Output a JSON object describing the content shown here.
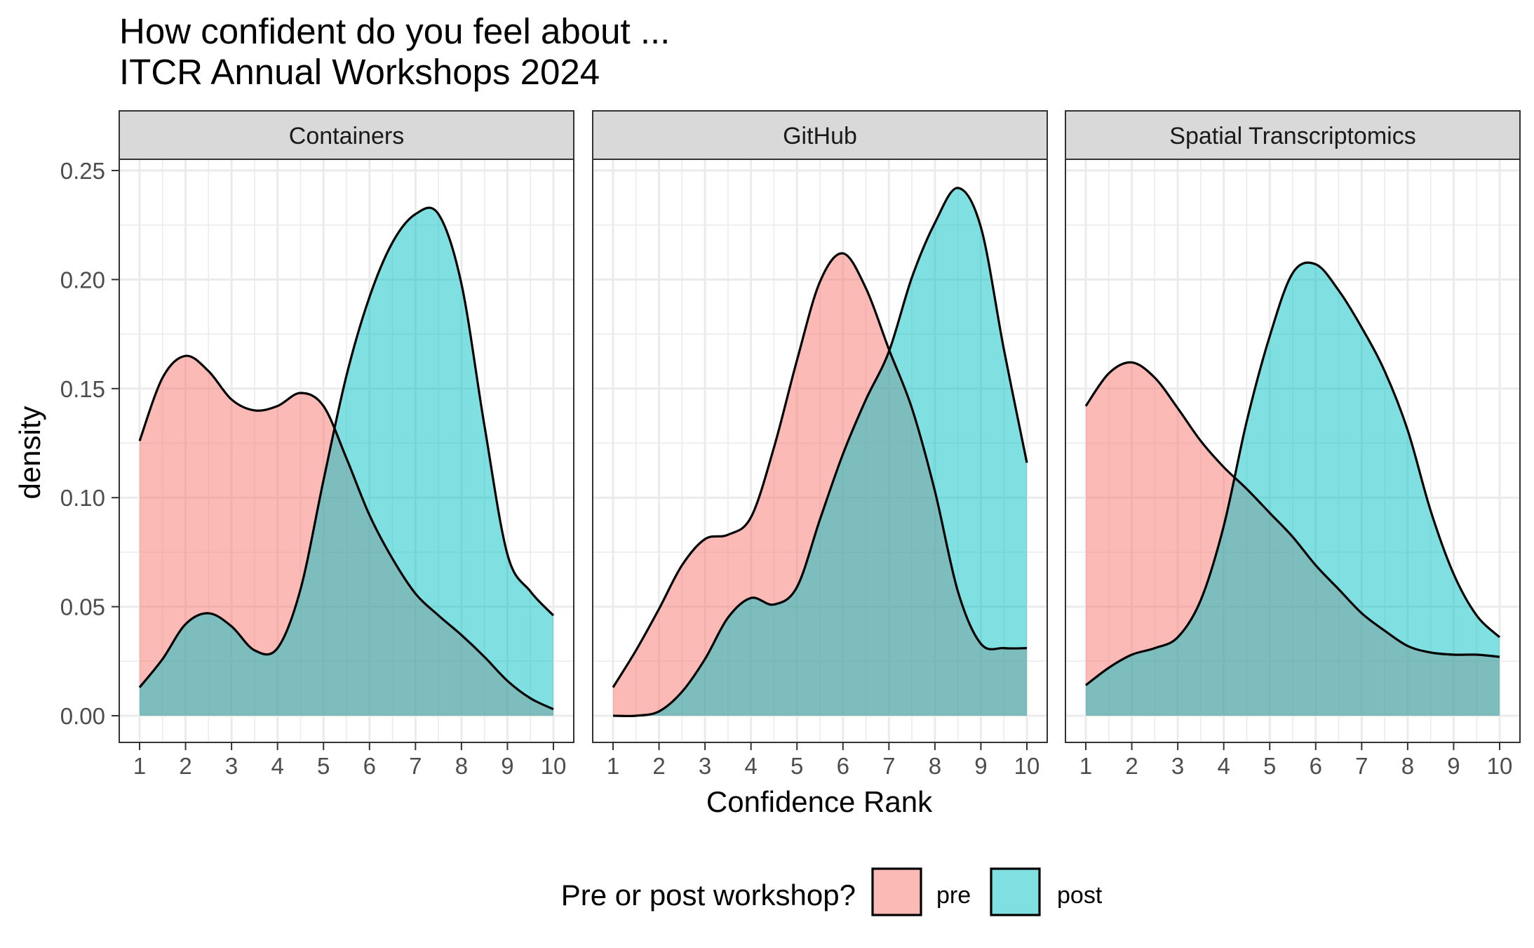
{
  "title_line1": "How confident do you feel about ...",
  "title_line2": "ITCR Annual Workshops 2024",
  "chart_data": {
    "type": "area",
    "subtype": "faceted density plot",
    "xlabel": "Confidence Rank",
    "ylabel": "density",
    "xlim": [
      1,
      10
    ],
    "ylim": [
      0,
      0.25
    ],
    "x_ticks": [
      1,
      2,
      3,
      4,
      5,
      6,
      7,
      8,
      9,
      10
    ],
    "y_ticks": [
      0.0,
      0.05,
      0.1,
      0.15,
      0.2,
      0.25
    ],
    "y_tick_labels": [
      "0.00",
      "0.05",
      "0.10",
      "0.15",
      "0.20",
      "0.25"
    ],
    "grid": true,
    "legend": {
      "title": "Pre or post workshop?",
      "position": "bottom",
      "entries": [
        {
          "label": "pre",
          "color": "#F8766D"
        },
        {
          "label": "post",
          "color": "#00BFC4"
        }
      ]
    },
    "colors": {
      "pre": "#F8766D",
      "post": "#00BFC4",
      "strip_bg": "#D9D9D9",
      "grid": "#EBEBEB"
    },
    "panels": [
      {
        "label": "Containers",
        "series": [
          {
            "name": "pre",
            "x": [
              1,
              1.5,
              2,
              2.5,
              3,
              3.5,
              4,
              4.5,
              5,
              5.5,
              6,
              6.5,
              7,
              7.5,
              8,
              8.5,
              9,
              9.5,
              10
            ],
            "y": [
              0.126,
              0.155,
              0.165,
              0.158,
              0.145,
              0.14,
              0.142,
              0.148,
              0.142,
              0.118,
              0.092,
              0.072,
              0.056,
              0.046,
              0.037,
              0.027,
              0.016,
              0.008,
              0.003
            ]
          },
          {
            "name": "post",
            "x": [
              1,
              1.5,
              2,
              2.5,
              3,
              3.5,
              4,
              4.5,
              5,
              5.5,
              6,
              6.5,
              7,
              7.5,
              8,
              8.5,
              9,
              9.5,
              10
            ],
            "y": [
              0.013,
              0.026,
              0.042,
              0.047,
              0.041,
              0.03,
              0.031,
              0.058,
              0.108,
              0.156,
              0.192,
              0.217,
              0.23,
              0.23,
              0.198,
              0.133,
              0.074,
              0.057,
              0.046
            ]
          }
        ]
      },
      {
        "label": "GitHub",
        "series": [
          {
            "name": "pre",
            "x": [
              1,
              1.5,
              2,
              2.5,
              3,
              3.5,
              4,
              4.5,
              5,
              5.5,
              6,
              6.5,
              7,
              7.5,
              8,
              8.5,
              9,
              9.5,
              10
            ],
            "y": [
              0.013,
              0.03,
              0.049,
              0.069,
              0.081,
              0.083,
              0.091,
              0.123,
              0.163,
              0.199,
              0.212,
              0.196,
              0.168,
              0.141,
              0.103,
              0.057,
              0.033,
              0.031,
              0.031
            ]
          },
          {
            "name": "post",
            "x": [
              1,
              1.5,
              2,
              2.5,
              3,
              3.5,
              4,
              4.5,
              5,
              5.5,
              6,
              6.5,
              7,
              7.5,
              8,
              8.5,
              9,
              9.5,
              10
            ],
            "y": [
              0.0,
              0.0,
              0.002,
              0.011,
              0.026,
              0.045,
              0.054,
              0.051,
              0.059,
              0.09,
              0.12,
              0.145,
              0.167,
              0.201,
              0.226,
              0.242,
              0.224,
              0.168,
              0.116
            ]
          }
        ]
      },
      {
        "label": "Spatial Transcriptomics",
        "series": [
          {
            "name": "pre",
            "x": [
              1,
              1.5,
              2,
              2.5,
              3,
              3.5,
              4,
              4.5,
              5,
              5.5,
              6,
              6.5,
              7,
              7.5,
              8,
              8.5,
              9,
              9.5,
              10
            ],
            "y": [
              0.142,
              0.157,
              0.162,
              0.155,
              0.141,
              0.126,
              0.114,
              0.104,
              0.093,
              0.082,
              0.069,
              0.058,
              0.047,
              0.039,
              0.032,
              0.029,
              0.028,
              0.028,
              0.027
            ]
          },
          {
            "name": "post",
            "x": [
              1,
              1.5,
              2,
              2.5,
              3,
              3.5,
              4,
              4.5,
              5,
              5.5,
              6,
              6.5,
              7,
              7.5,
              8,
              8.5,
              9,
              9.5,
              10
            ],
            "y": [
              0.014,
              0.022,
              0.028,
              0.031,
              0.036,
              0.053,
              0.087,
              0.135,
              0.174,
              0.203,
              0.207,
              0.195,
              0.178,
              0.158,
              0.131,
              0.094,
              0.065,
              0.046,
              0.036
            ]
          }
        ]
      }
    ]
  }
}
